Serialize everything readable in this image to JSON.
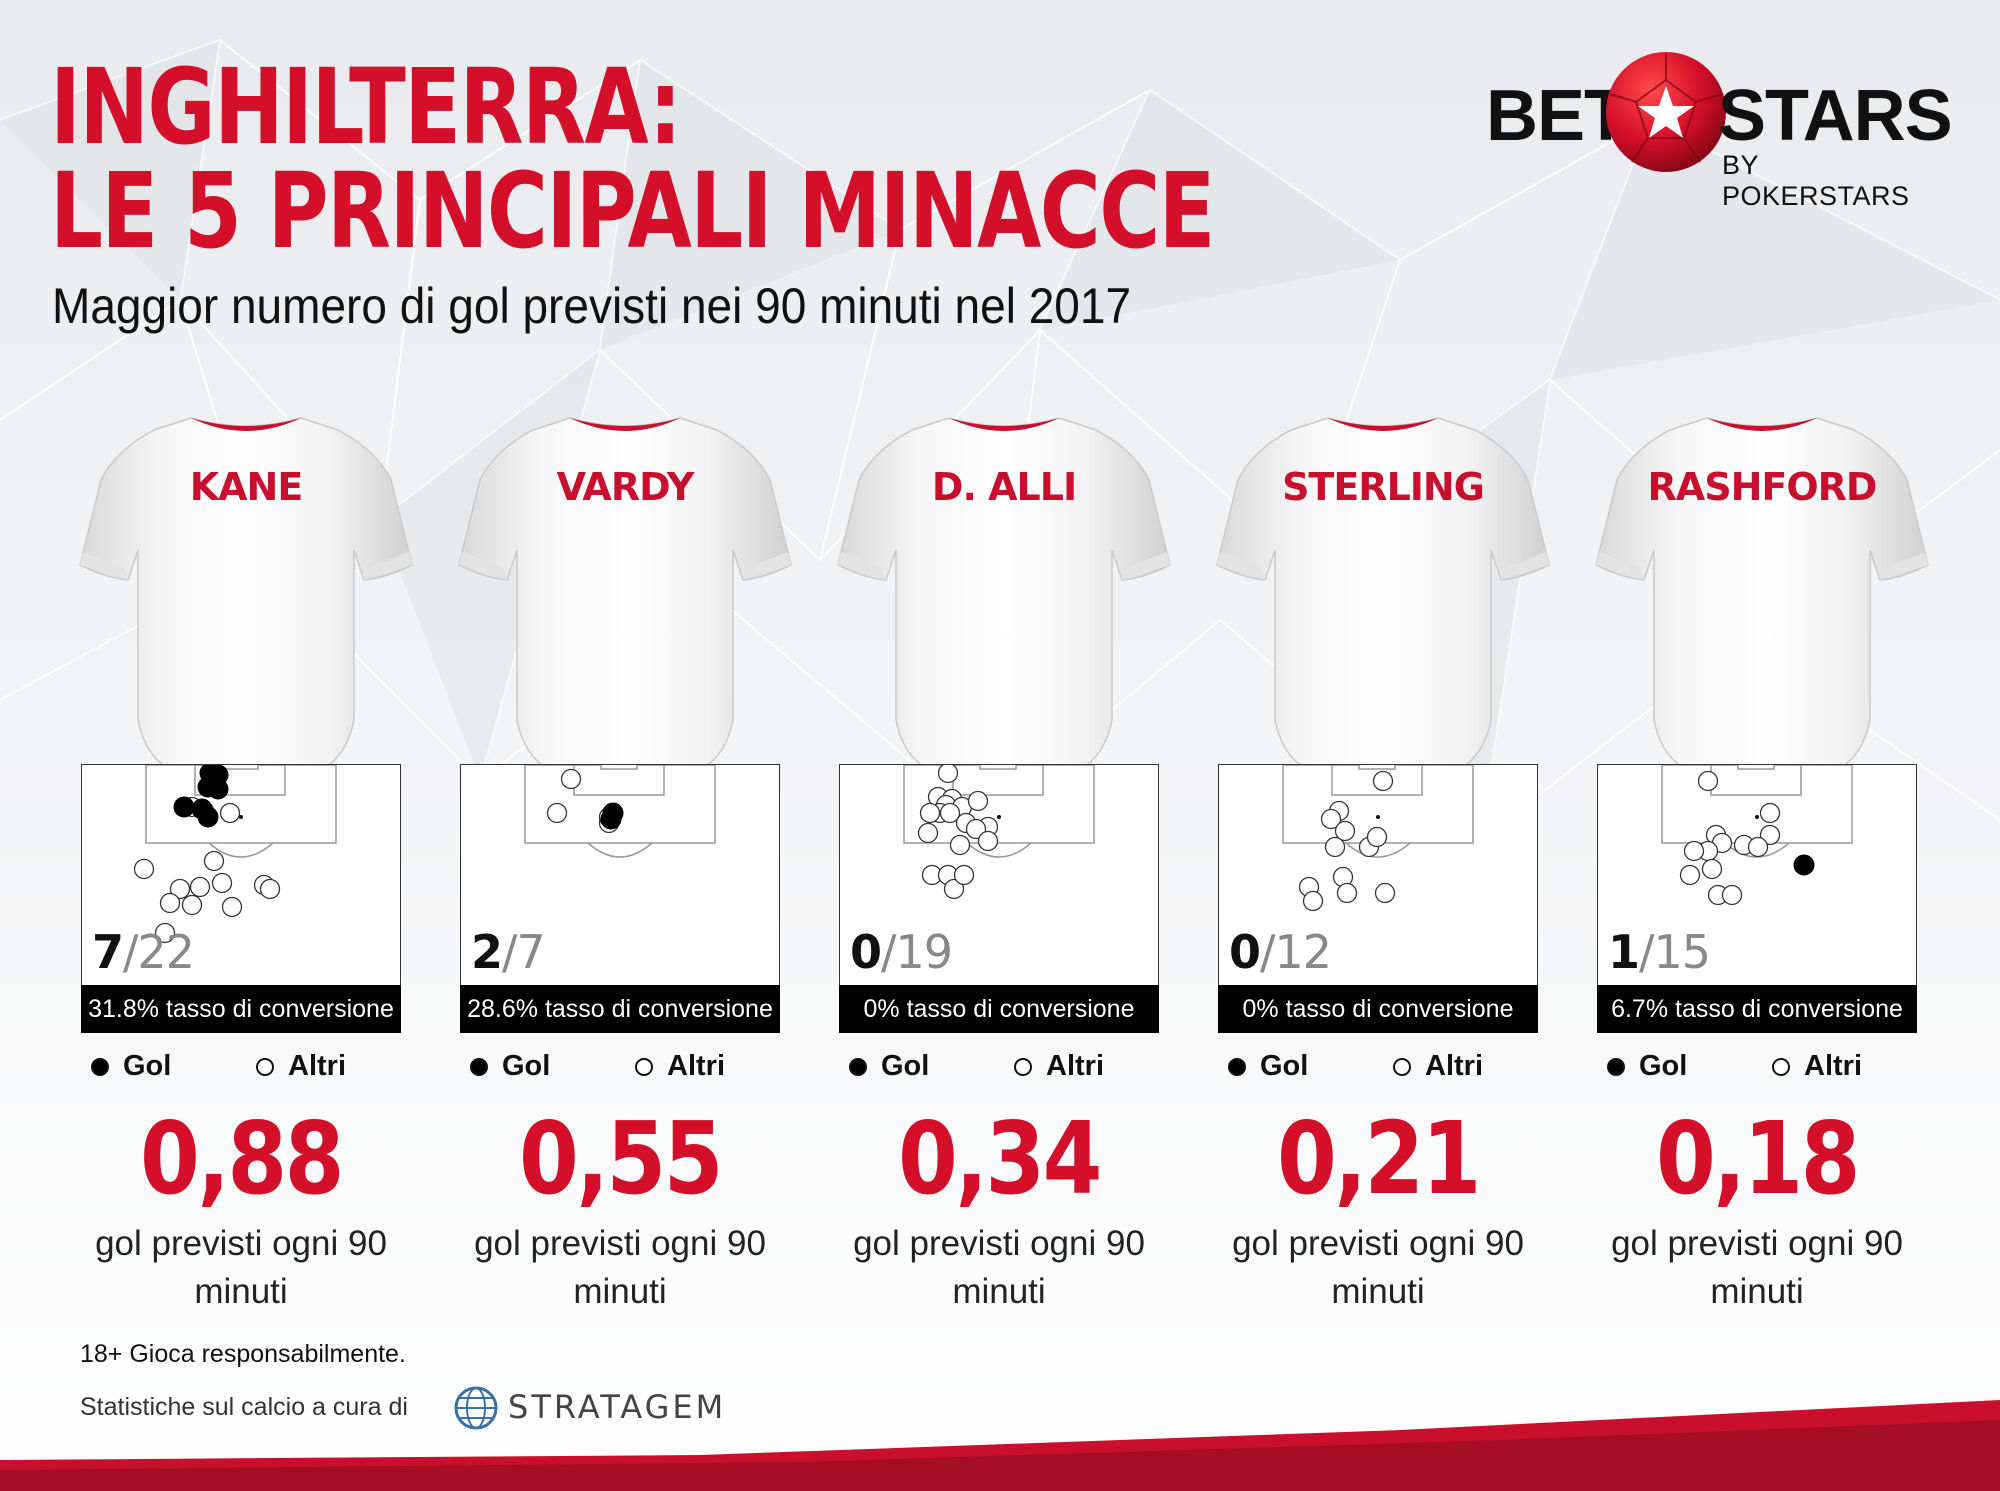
{
  "header": {
    "title_line1": "INGHILTERRA:",
    "title_line2": "LE 5 PRINCIPALI MINACCE",
    "subtitle": "Maggior numero di gol previsti nei 90 minuti nel 2017"
  },
  "logo": {
    "bet": "BET",
    "stars": "STARS",
    "by": "BY POKERSTARS"
  },
  "legend": {
    "goal": "Gol",
    "other": "Altri"
  },
  "players": [
    {
      "name": "KANE",
      "goals": "7",
      "shots": "22",
      "conversion": "31.8% tasso di conversione",
      "xg": "0,88",
      "xg_label": "gol previsti ogni 90 minuti"
    },
    {
      "name": "VARDY",
      "goals": "2",
      "shots": "7",
      "conversion": "28.6% tasso di conversione",
      "xg": "0,55",
      "xg_label": "gol previsti ogni 90 minuti"
    },
    {
      "name": "D. ALLI",
      "goals": "0",
      "shots": "19",
      "conversion": "0% tasso di conversione",
      "xg": "0,34",
      "xg_label": "gol previsti ogni 90 minuti"
    },
    {
      "name": "STERLING",
      "goals": "0",
      "shots": "12",
      "conversion": "0% tasso di conversione",
      "xg": "0,21",
      "xg_label": "gol previsti ogni 90 minuti"
    },
    {
      "name": "RASHFORD",
      "goals": "1",
      "shots": "15",
      "conversion": "6.7% tasso di conversione",
      "xg": "0,18",
      "xg_label": "gol previsti ogni 90 minuti"
    }
  ],
  "footer": {
    "disclaimer": "18+ Gioca responsabilmente.",
    "credit": "Statistiche sul calcio a cura di",
    "partner": "STRATAGEM"
  },
  "colors": {
    "accent": "#d40f2a",
    "text": "#111111",
    "bar": "#000000"
  }
}
